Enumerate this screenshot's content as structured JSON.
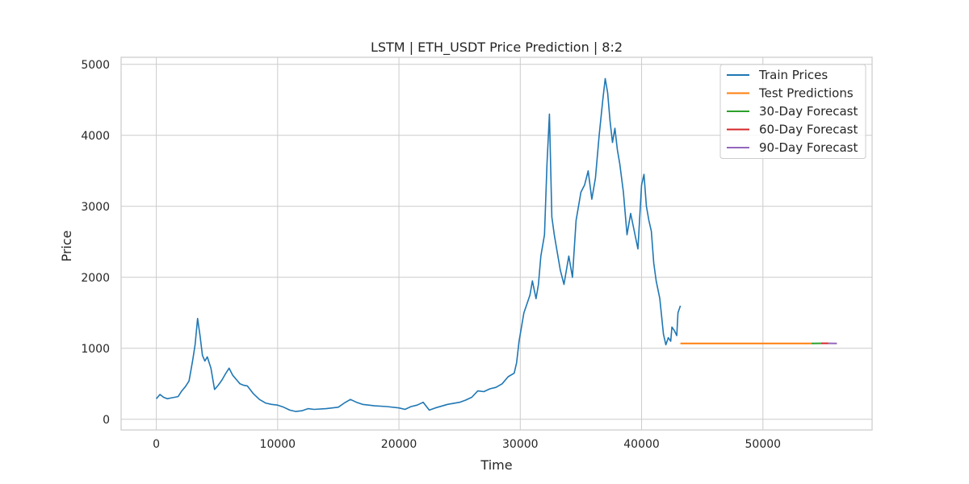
{
  "chart_data": {
    "type": "line",
    "title": "LSTM | ETH_USDT Price Prediction | 8:2",
    "xlabel": "Time",
    "ylabel": "Price",
    "xlim": [
      -2900,
      59000
    ],
    "ylim": [
      -150,
      5100
    ],
    "xticks": [
      0,
      10000,
      20000,
      30000,
      40000,
      50000
    ],
    "yticks": [
      0,
      1000,
      2000,
      3000,
      4000,
      5000
    ],
    "grid": true,
    "legend_position": "top-right",
    "series": [
      {
        "name": "Train Prices",
        "color": "#1f77b4",
        "x": [
          0,
          300,
          600,
          900,
          1200,
          1500,
          1800,
          2100,
          2400,
          2700,
          3000,
          3200,
          3400,
          3600,
          3800,
          4000,
          4200,
          4500,
          4800,
          5100,
          5400,
          5700,
          6000,
          6300,
          6600,
          6900,
          7200,
          7500,
          8000,
          8500,
          9000,
          9500,
          10000,
          10500,
          11000,
          11500,
          12000,
          12500,
          13000,
          14000,
          15000,
          15500,
          16000,
          16500,
          17000,
          18000,
          19000,
          20000,
          20500,
          21000,
          21500,
          22000,
          22500,
          23000,
          24000,
          25000,
          25500,
          26000,
          26500,
          27000,
          27500,
          28000,
          28500,
          29000,
          29500,
          29700,
          29900,
          30100,
          30300,
          30500,
          30800,
          31000,
          31300,
          31500,
          31700,
          32000,
          32200,
          32400,
          32600,
          32800,
          33000,
          33300,
          33600,
          34000,
          34300,
          34600,
          35000,
          35300,
          35600,
          35900,
          36200,
          36500,
          36800,
          37000,
          37200,
          37400,
          37600,
          37800,
          38000,
          38200,
          38500,
          38800,
          39100,
          39400,
          39700,
          40000,
          40200,
          40400,
          40600,
          40800,
          41000,
          41200,
          41500,
          41800,
          42000,
          42200,
          42400,
          42500,
          42700,
          42900,
          43000,
          43200
        ],
        "values": [
          290,
          350,
          310,
          290,
          300,
          310,
          320,
          400,
          460,
          540,
          830,
          1050,
          1420,
          1180,
          900,
          820,
          880,
          720,
          420,
          480,
          550,
          640,
          720,
          620,
          560,
          500,
          480,
          470,
          360,
          280,
          230,
          210,
          200,
          170,
          130,
          110,
          120,
          150,
          140,
          150,
          170,
          230,
          280,
          240,
          210,
          190,
          180,
          160,
          140,
          180,
          200,
          240,
          130,
          160,
          210,
          240,
          270,
          310,
          400,
          390,
          430,
          450,
          500,
          600,
          650,
          800,
          1100,
          1300,
          1500,
          1600,
          1750,
          1950,
          1700,
          1900,
          2300,
          2600,
          3600,
          4300,
          2850,
          2600,
          2400,
          2100,
          1900,
          2300,
          2000,
          2800,
          3200,
          3300,
          3500,
          3100,
          3400,
          4000,
          4500,
          4800,
          4600,
          4200,
          3900,
          4100,
          3800,
          3600,
          3200,
          2600,
          2900,
          2650,
          2400,
          3300,
          3450,
          3000,
          2800,
          2650,
          2200,
          1950,
          1700,
          1200,
          1050,
          1150,
          1100,
          1300,
          1250,
          1180,
          1500,
          1600
        ]
      },
      {
        "name": "Test Predictions",
        "color": "#ff7f0e",
        "x": [
          43200,
          54000
        ],
        "values": [
          1068,
          1068
        ]
      },
      {
        "name": "30-Day Forecast",
        "color": "#2ca02c",
        "x": [
          54000,
          54800
        ],
        "values": [
          1068,
          1070
        ]
      },
      {
        "name": "60-Day Forecast",
        "color": "#d62728",
        "x": [
          54800,
          55400
        ],
        "values": [
          1070,
          1070
        ]
      },
      {
        "name": "90-Day Forecast",
        "color": "#9467bd",
        "x": [
          55400,
          56100
        ],
        "values": [
          1070,
          1068
        ]
      }
    ]
  }
}
